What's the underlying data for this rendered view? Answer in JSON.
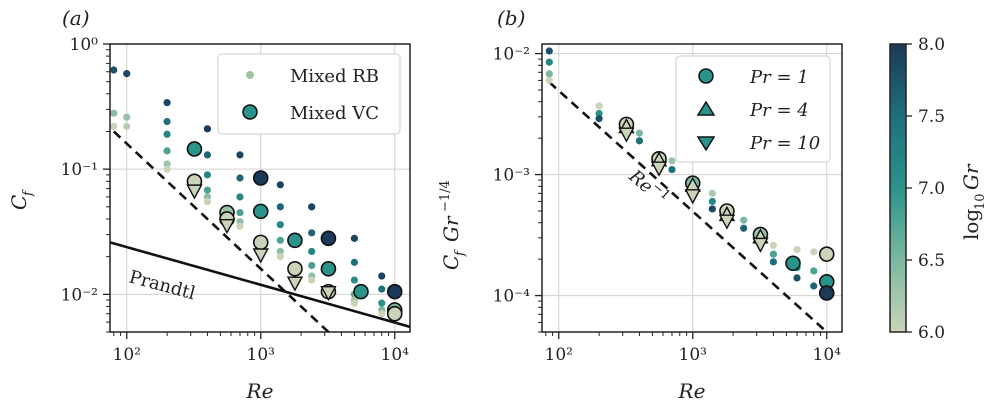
{
  "colorbar": {
    "label": "log10 Gr",
    "label_main": "log",
    "label_sub": "10",
    "label_var": "Gr",
    "range": [
      6.0,
      8.0
    ],
    "ticks": [
      "6.0",
      "6.5",
      "7.0",
      "7.5",
      "8.0"
    ],
    "colors": [
      "#c9d4b9",
      "#7cb8a0",
      "#2a948a",
      "#1f6f7d",
      "#1b3a5a"
    ]
  },
  "panel_a": {
    "panel_label": "(a)",
    "legend": [
      "Mixed RB",
      "Mixed VC"
    ],
    "prandtl_label": "Prandtl",
    "xlabel": "Re",
    "ylabel": "C",
    "ylabel_sub": "f"
  },
  "panel_b": {
    "panel_label": "(b)",
    "legend": [
      "Pr = 1",
      "Pr = 4",
      "Pr = 10"
    ],
    "slope_label": "Re",
    "slope_exp": "−1",
    "xlabel": "Re",
    "ylabel": "C",
    "ylabel_sub": "f",
    "ylabel_gr": "Gr",
    "ylabel_exp": "−1/4"
  },
  "chart_data": [
    {
      "type": "scatter",
      "panel": "a",
      "xscale": "log",
      "yscale": "log",
      "xlim": [
        75,
        13000
      ],
      "ylim": [
        0.005,
        1.0
      ],
      "xticks": [
        "10²",
        "10³",
        "10⁴"
      ],
      "yticks": [
        "10⁻²",
        "10⁻¹",
        "10⁰"
      ],
      "grid": true,
      "legend_position": "top-right",
      "series": [
        {
          "name": "Mixed RB",
          "marker": "small-circle",
          "points": [
            {
              "x": 80,
              "y": 0.62,
              "g": 7.8
            },
            {
              "x": 80,
              "y": 0.28,
              "g": 6.4
            },
            {
              "x": 80,
              "y": 0.22,
              "g": 6.0
            },
            {
              "x": 100,
              "y": 0.58,
              "g": 7.9
            },
            {
              "x": 100,
              "y": 0.26,
              "g": 6.3
            },
            {
              "x": 100,
              "y": 0.22,
              "g": 6.1
            },
            {
              "x": 200,
              "y": 0.34,
              "g": 7.9
            },
            {
              "x": 200,
              "y": 0.24,
              "g": 7.5
            },
            {
              "x": 200,
              "y": 0.19,
              "g": 7.2
            },
            {
              "x": 200,
              "y": 0.14,
              "g": 6.8
            },
            {
              "x": 200,
              "y": 0.11,
              "g": 6.3
            },
            {
              "x": 200,
              "y": 0.1,
              "g": 6.0
            },
            {
              "x": 400,
              "y": 0.21,
              "g": 8.0
            },
            {
              "x": 400,
              "y": 0.13,
              "g": 7.6
            },
            {
              "x": 400,
              "y": 0.09,
              "g": 7.2
            },
            {
              "x": 400,
              "y": 0.068,
              "g": 6.8
            },
            {
              "x": 400,
              "y": 0.06,
              "g": 6.4
            },
            {
              "x": 400,
              "y": 0.055,
              "g": 6.0
            },
            {
              "x": 700,
              "y": 0.13,
              "g": 7.9
            },
            {
              "x": 700,
              "y": 0.085,
              "g": 7.6
            },
            {
              "x": 700,
              "y": 0.06,
              "g": 7.2
            },
            {
              "x": 700,
              "y": 0.045,
              "g": 6.8
            },
            {
              "x": 700,
              "y": 0.038,
              "g": 6.4
            },
            {
              "x": 700,
              "y": 0.035,
              "g": 6.0
            },
            {
              "x": 1400,
              "y": 0.075,
              "g": 7.9
            },
            {
              "x": 1400,
              "y": 0.05,
              "g": 7.6
            },
            {
              "x": 1400,
              "y": 0.036,
              "g": 7.2
            },
            {
              "x": 1400,
              "y": 0.027,
              "g": 6.8
            },
            {
              "x": 1400,
              "y": 0.022,
              "g": 6.4
            },
            {
              "x": 1400,
              "y": 0.02,
              "g": 6.0
            },
            {
              "x": 2400,
              "y": 0.05,
              "g": 7.9
            },
            {
              "x": 2400,
              "y": 0.031,
              "g": 7.6
            },
            {
              "x": 2400,
              "y": 0.022,
              "g": 7.2
            },
            {
              "x": 2400,
              "y": 0.017,
              "g": 6.8
            },
            {
              "x": 2400,
              "y": 0.014,
              "g": 6.4
            },
            {
              "x": 2400,
              "y": 0.013,
              "g": 6.0
            },
            {
              "x": 5000,
              "y": 0.028,
              "g": 7.9
            },
            {
              "x": 5000,
              "y": 0.018,
              "g": 7.5
            },
            {
              "x": 5000,
              "y": 0.013,
              "g": 7.1
            },
            {
              "x": 5000,
              "y": 0.01,
              "g": 6.7
            },
            {
              "x": 5000,
              "y": 0.009,
              "g": 6.3
            },
            {
              "x": 5000,
              "y": 0.0085,
              "g": 6.0
            },
            {
              "x": 8000,
              "y": 0.014,
              "g": 7.9
            },
            {
              "x": 8000,
              "y": 0.011,
              "g": 7.5
            },
            {
              "x": 8000,
              "y": 0.0085,
              "g": 7.0
            },
            {
              "x": 8000,
              "y": 0.0075,
              "g": 6.5
            },
            {
              "x": 8000,
              "y": 0.007,
              "g": 6.0
            }
          ]
        },
        {
          "name": "Mixed VC",
          "marker": "circle",
          "points": [
            {
              "x": 320,
              "y": 0.145,
              "g": 7.0
            },
            {
              "x": 320,
              "y": 0.08,
              "g": 6.0
            },
            {
              "x": 560,
              "y": 0.045,
              "g": 6.3
            },
            {
              "x": 560,
              "y": 0.04,
              "g": 6.0
            },
            {
              "x": 1000,
              "y": 0.085,
              "g": 8.0
            },
            {
              "x": 1000,
              "y": 0.046,
              "g": 7.0
            },
            {
              "x": 1000,
              "y": 0.026,
              "g": 6.0
            },
            {
              "x": 1800,
              "y": 0.027,
              "g": 7.0
            },
            {
              "x": 1800,
              "y": 0.016,
              "g": 6.0
            },
            {
              "x": 3200,
              "y": 0.028,
              "g": 8.0
            },
            {
              "x": 3200,
              "y": 0.016,
              "g": 7.0
            },
            {
              "x": 3200,
              "y": 0.0105,
              "g": 6.0
            },
            {
              "x": 5600,
              "y": 0.0105,
              "g": 7.0
            },
            {
              "x": 10000,
              "y": 0.0105,
              "g": 8.0
            },
            {
              "x": 10000,
              "y": 0.0075,
              "g": 6.5
            },
            {
              "x": 10000,
              "y": 0.007,
              "g": 6.0
            }
          ]
        },
        {
          "name": "",
          "marker": "triangle-down",
          "points": [
            {
              "x": 320,
              "y": 0.068,
              "g": 6.0
            },
            {
              "x": 560,
              "y": 0.036,
              "g": 6.0
            },
            {
              "x": 1000,
              "y": 0.021,
              "g": 6.0
            },
            {
              "x": 1800,
              "y": 0.0125,
              "g": 6.0
            },
            {
              "x": 3200,
              "y": 0.0105,
              "g": 6.0
            }
          ]
        }
      ],
      "lines": [
        {
          "name": "dashed",
          "style": "dashed",
          "x": [
            80,
            3200
          ],
          "y": [
            0.2,
            0.005
          ]
        },
        {
          "name": "Prandtl",
          "style": "solid",
          "x": [
            75,
            13000
          ],
          "y": [
            0.026,
            0.0055
          ]
        }
      ]
    },
    {
      "type": "scatter",
      "panel": "b",
      "xscale": "log",
      "yscale": "log",
      "xlim": [
        75,
        13000
      ],
      "ylim": [
        5e-05,
        0.012
      ],
      "xticks": [
        "10²",
        "10³",
        "10⁴"
      ],
      "yticks": [
        "10⁻⁴",
        "10⁻³",
        "10⁻²"
      ],
      "grid": true,
      "legend_position": "top-right",
      "series": [
        {
          "name": "Mixed RB",
          "marker": "small-circle",
          "points": [
            {
              "x": 85,
              "y": 0.0105,
              "g": 7.8
            },
            {
              "x": 85,
              "y": 0.0085,
              "g": 7.2
            },
            {
              "x": 85,
              "y": 0.0068,
              "g": 6.5
            },
            {
              "x": 85,
              "y": 0.006,
              "g": 6.0
            },
            {
              "x": 200,
              "y": 0.0037,
              "g": 6.0
            },
            {
              "x": 200,
              "y": 0.0032,
              "g": 7.0
            },
            {
              "x": 200,
              "y": 0.0029,
              "g": 7.8
            },
            {
              "x": 400,
              "y": 0.0022,
              "g": 6.5
            },
            {
              "x": 400,
              "y": 0.0019,
              "g": 7.5
            },
            {
              "x": 700,
              "y": 0.0013,
              "g": 6.3
            },
            {
              "x": 700,
              "y": 0.0011,
              "g": 7.5
            },
            {
              "x": 1400,
              "y": 0.0007,
              "g": 6.2
            },
            {
              "x": 1400,
              "y": 0.0006,
              "g": 7.2
            },
            {
              "x": 1400,
              "y": 0.00052,
              "g": 7.9
            },
            {
              "x": 2400,
              "y": 0.00042,
              "g": 6.5
            },
            {
              "x": 2400,
              "y": 0.00036,
              "g": 7.6
            },
            {
              "x": 4000,
              "y": 0.00026,
              "g": 6.0
            },
            {
              "x": 4000,
              "y": 0.00022,
              "g": 6.8
            },
            {
              "x": 4000,
              "y": 0.00019,
              "g": 7.5
            },
            {
              "x": 6000,
              "y": 0.00024,
              "g": 6.0
            },
            {
              "x": 6000,
              "y": 0.00017,
              "g": 7.0
            },
            {
              "x": 6000,
              "y": 0.00014,
              "g": 7.8
            },
            {
              "x": 8000,
              "y": 0.00023,
              "g": 6.0
            },
            {
              "x": 8000,
              "y": 0.00016,
              "g": 6.8
            },
            {
              "x": 8000,
              "y": 0.00012,
              "g": 7.6
            }
          ]
        },
        {
          "name": "Pr = 1",
          "marker": "circle",
          "points": [
            {
              "x": 320,
              "y": 0.0026,
              "g": 6.0
            },
            {
              "x": 560,
              "y": 0.00135,
              "g": 6.0
            },
            {
              "x": 1000,
              "y": 0.00085,
              "g": 6.5
            },
            {
              "x": 1800,
              "y": 0.0005,
              "g": 6.0
            },
            {
              "x": 3200,
              "y": 0.00032,
              "g": 6.3
            },
            {
              "x": 5600,
              "y": 0.000185,
              "g": 7.0
            },
            {
              "x": 10000,
              "y": 0.00022,
              "g": 6.0
            },
            {
              "x": 10000,
              "y": 0.00013,
              "g": 7.0
            },
            {
              "x": 10000,
              "y": 0.000105,
              "g": 8.0
            }
          ]
        },
        {
          "name": "Pr = 4",
          "marker": "triangle-up",
          "points": [
            {
              "x": 320,
              "y": 0.00245,
              "g": 6.0
            },
            {
              "x": 560,
              "y": 0.0013,
              "g": 6.0
            },
            {
              "x": 1000,
              "y": 0.0008,
              "g": 6.0
            },
            {
              "x": 1800,
              "y": 0.00046,
              "g": 6.0
            },
            {
              "x": 3200,
              "y": 0.0003,
              "g": 6.0
            }
          ]
        },
        {
          "name": "Pr = 10",
          "marker": "triangle-down",
          "points": [
            {
              "x": 320,
              "y": 0.0022,
              "g": 6.0
            },
            {
              "x": 560,
              "y": 0.00115,
              "g": 6.0
            },
            {
              "x": 1000,
              "y": 0.00068,
              "g": 6.0
            },
            {
              "x": 1800,
              "y": 0.00042,
              "g": 6.0
            },
            {
              "x": 3200,
              "y": 0.00027,
              "g": 6.0
            }
          ]
        }
      ],
      "lines": [
        {
          "name": "Re^-1",
          "style": "dashed",
          "x": [
            85,
            10000
          ],
          "y": [
            0.0058,
            5e-05
          ]
        }
      ]
    }
  ]
}
